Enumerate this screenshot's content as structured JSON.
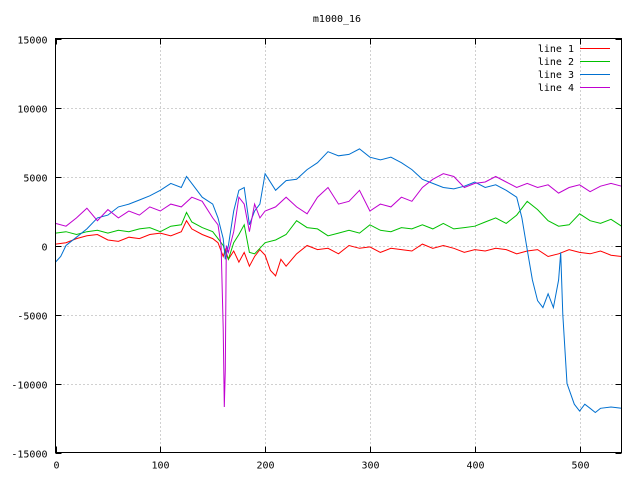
{
  "chart_data": {
    "type": "line",
    "title": "m1000_16",
    "xlabel": "",
    "ylabel": "",
    "xlim": [
      0,
      540
    ],
    "ylim": [
      -15000,
      15000
    ],
    "xticks": [
      0,
      100,
      200,
      300,
      400,
      500
    ],
    "yticks": [
      -15000,
      -10000,
      -5000,
      0,
      5000,
      10000,
      15000
    ],
    "grid": true,
    "legend_position": "top-right",
    "series": [
      {
        "name": "line 1",
        "color": "#ff0000",
        "x": [
          0,
          10,
          20,
          30,
          40,
          50,
          60,
          70,
          80,
          90,
          100,
          110,
          120,
          125,
          130,
          140,
          150,
          155,
          160,
          162,
          165,
          170,
          175,
          180,
          185,
          190,
          195,
          200,
          205,
          210,
          215,
          220,
          230,
          240,
          250,
          260,
          270,
          280,
          290,
          300,
          310,
          320,
          330,
          340,
          350,
          360,
          370,
          380,
          390,
          400,
          410,
          420,
          430,
          440,
          450,
          460,
          470,
          480,
          490,
          500,
          510,
          520,
          530,
          540
        ],
        "y": [
          100,
          200,
          500,
          700,
          800,
          400,
          300,
          600,
          500,
          800,
          900,
          700,
          1000,
          1800,
          1200,
          800,
          500,
          200,
          -800,
          -300,
          -1000,
          -400,
          -1200,
          -500,
          -1500,
          -800,
          -300,
          -700,
          -1800,
          -2200,
          -1000,
          -1500,
          -600,
          0,
          -300,
          -200,
          -600,
          0,
          -200,
          -100,
          -500,
          -200,
          -300,
          -400,
          100,
          -200,
          0,
          -200,
          -500,
          -300,
          -400,
          -200,
          -300,
          -600,
          -400,
          -300,
          -800,
          -600,
          -300,
          -500,
          -600,
          -400,
          -700,
          -800
        ]
      },
      {
        "name": "line 2",
        "color": "#00c000",
        "x": [
          0,
          10,
          20,
          30,
          40,
          50,
          60,
          70,
          80,
          90,
          100,
          110,
          120,
          125,
          130,
          140,
          150,
          155,
          160,
          162,
          165,
          170,
          175,
          180,
          185,
          190,
          195,
          200,
          210,
          220,
          230,
          240,
          250,
          260,
          270,
          280,
          290,
          300,
          310,
          320,
          330,
          340,
          350,
          360,
          370,
          380,
          390,
          400,
          410,
          420,
          430,
          440,
          450,
          460,
          470,
          480,
          490,
          500,
          510,
          520,
          530,
          540
        ],
        "y": [
          900,
          1000,
          800,
          1000,
          1100,
          900,
          1100,
          1000,
          1200,
          1300,
          1000,
          1400,
          1500,
          2400,
          1700,
          1300,
          1000,
          500,
          0,
          -500,
          -1000,
          200,
          800,
          1500,
          -500,
          -600,
          -200,
          200,
          400,
          800,
          1800,
          1300,
          1200,
          700,
          900,
          1100,
          900,
          1500,
          1100,
          1000,
          1300,
          1200,
          1500,
          1200,
          1600,
          1200,
          1300,
          1400,
          1700,
          2000,
          1600,
          2200,
          3200,
          2600,
          1800,
          1400,
          1500,
          2300,
          1800,
          1600,
          1900,
          1400
        ]
      },
      {
        "name": "line 3",
        "color": "#0070d0",
        "x": [
          0,
          5,
          10,
          20,
          30,
          40,
          50,
          60,
          70,
          80,
          90,
          100,
          110,
          120,
          125,
          130,
          140,
          150,
          155,
          160,
          162,
          165,
          170,
          175,
          180,
          185,
          190,
          195,
          200,
          210,
          220,
          230,
          240,
          250,
          260,
          270,
          280,
          290,
          300,
          310,
          320,
          330,
          340,
          350,
          360,
          370,
          380,
          390,
          400,
          410,
          420,
          430,
          440,
          445,
          450,
          455,
          460,
          465,
          470,
          475,
          480,
          482,
          484,
          488,
          495,
          500,
          505,
          510,
          515,
          520,
          530,
          540
        ],
        "y": [
          -1200,
          -800,
          0,
          600,
          1200,
          2000,
          2200,
          2800,
          3000,
          3300,
          3600,
          4000,
          4500,
          4200,
          5000,
          4500,
          3500,
          3000,
          2000,
          500,
          -1000,
          0,
          2500,
          4000,
          4200,
          1500,
          2500,
          3000,
          5200,
          4000,
          4700,
          4800,
          5500,
          6000,
          6800,
          6500,
          6600,
          7000,
          6400,
          6200,
          6400,
          6000,
          5500,
          4800,
          4500,
          4200,
          4100,
          4300,
          4600,
          4200,
          4400,
          4000,
          3500,
          2000,
          -300,
          -2500,
          -4000,
          -4500,
          -3500,
          -4500,
          -2500,
          -500,
          -5000,
          -10000,
          -11500,
          -12000,
          -11500,
          -11800,
          -12100,
          -11800,
          -11700,
          -11800
        ]
      },
      {
        "name": "line 4",
        "color": "#c000d0",
        "x": [
          0,
          10,
          20,
          30,
          40,
          50,
          60,
          70,
          80,
          90,
          100,
          110,
          120,
          130,
          140,
          150,
          155,
          158,
          160,
          161,
          162,
          163,
          165,
          170,
          175,
          180,
          185,
          190,
          195,
          200,
          210,
          220,
          230,
          240,
          250,
          260,
          270,
          280,
          290,
          300,
          310,
          320,
          330,
          340,
          350,
          360,
          370,
          380,
          390,
          400,
          410,
          420,
          430,
          440,
          450,
          460,
          470,
          480,
          490,
          500,
          510,
          520,
          530,
          540
        ],
        "y": [
          1600,
          1400,
          2000,
          2700,
          1800,
          2600,
          2000,
          2500,
          2200,
          2800,
          2500,
          3000,
          2800,
          3500,
          3200,
          2000,
          1500,
          0,
          -6000,
          -11700,
          -9000,
          0,
          -500,
          1000,
          3500,
          3000,
          1000,
          3000,
          2000,
          2500,
          2800,
          3500,
          2800,
          2300,
          3500,
          4200,
          3000,
          3200,
          4000,
          2500,
          3000,
          2800,
          3500,
          3200,
          4200,
          4800,
          5200,
          5000,
          4200,
          4500,
          4600,
          5000,
          4600,
          4200,
          4500,
          4200,
          4400,
          3800,
          4200,
          4400,
          3900,
          4300,
          4500,
          4300
        ]
      }
    ]
  }
}
